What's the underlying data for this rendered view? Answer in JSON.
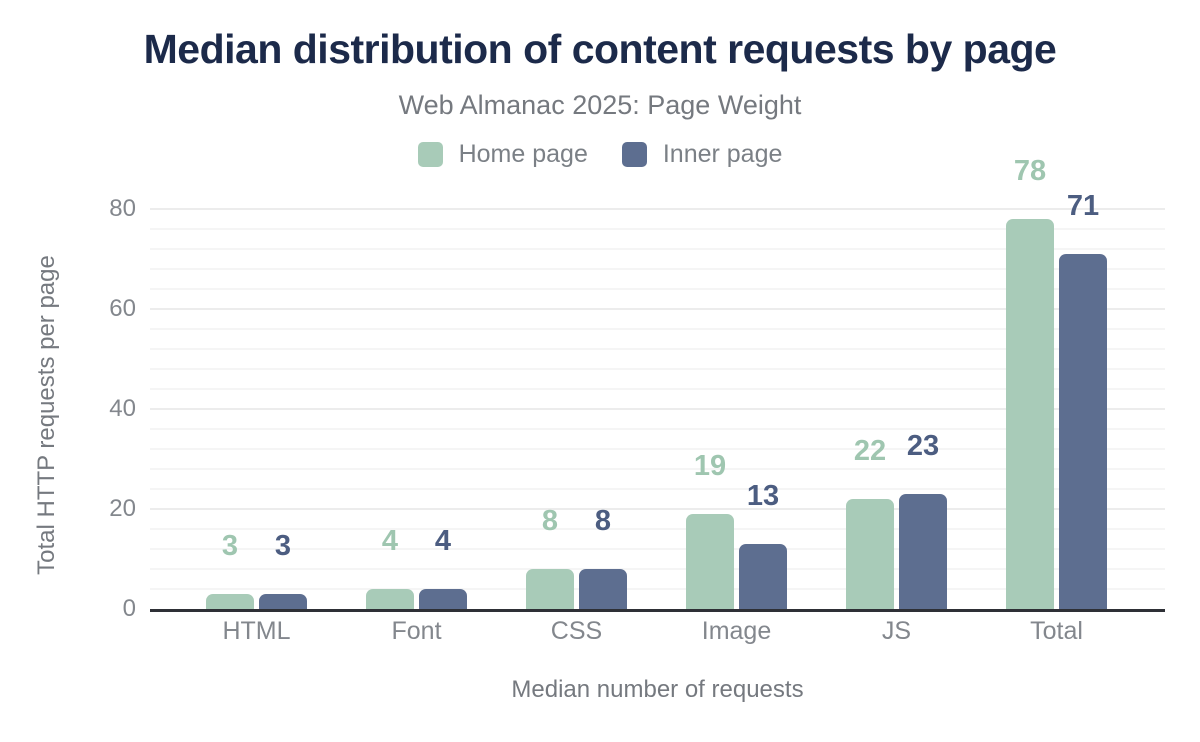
{
  "header": {
    "title": "Median distribution of content requests by page",
    "subtitle": "Web Almanac 2025: Page Weight"
  },
  "chart_data": {
    "type": "bar",
    "title": "Median distribution of content requests by page",
    "subtitle": "Web Almanac 2025: Page Weight",
    "categories": [
      "HTML",
      "Font",
      "CSS",
      "Image",
      "JS",
      "Total"
    ],
    "series": [
      {
        "name": "Home page",
        "color": "#a8cbb8",
        "label_color": "#9fc6b0",
        "values": [
          3,
          4,
          8,
          19,
          22,
          78
        ]
      },
      {
        "name": "Inner page",
        "color": "#5d6e90",
        "label_color": "#4c5d81",
        "values": [
          3,
          4,
          8,
          13,
          23,
          71
        ]
      }
    ],
    "xlabel": "Median number of requests",
    "ylabel": "Total HTTP requests per page",
    "ylim": [
      0,
      80
    ],
    "yticks": [
      0,
      20,
      40,
      60,
      80
    ],
    "minor_grid_interval": 4,
    "grid": "horizontal",
    "legend_position": "top",
    "bar_value_labels": true,
    "axis_line_color": "#2e3036",
    "title_color": "#1c2a4a",
    "text_color": "#83878d"
  }
}
